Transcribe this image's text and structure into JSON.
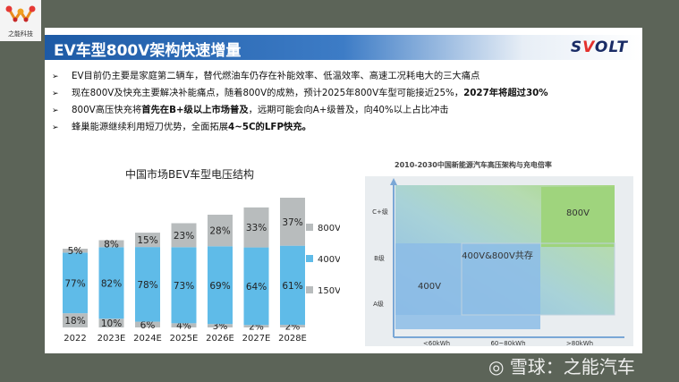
{
  "logo": {
    "text": "之能科技"
  },
  "slide": {
    "title": "EV车型800V架构快速增量",
    "brand": {
      "part1": "S",
      "dot": "V",
      "part2": "OLT"
    },
    "bullets": [
      {
        "arrow": "➢",
        "parts": [
          {
            "text": "EV目前仍主要是家庭第二辆车，替代燃油车仍存在补能效率、低温效率、高速工况耗电大的三大痛点",
            "bold": false
          }
        ]
      },
      {
        "arrow": "➢",
        "parts": [
          {
            "text": "现在800V及快充主要解决补能痛点，随着800V的成熟，预计2025年800V车型可能接近25%，",
            "bold": false
          },
          {
            "text": "2027年将超过30%",
            "bold": true
          }
        ]
      },
      {
        "arrow": "➢",
        "parts": [
          {
            "text": "800V高压快充将",
            "bold": false
          },
          {
            "text": "首先在B+级以上市场普及",
            "bold": true
          },
          {
            "text": "，远期可能会向A+级普及，向40%以上占比冲击",
            "bold": false
          }
        ]
      },
      {
        "arrow": "➢",
        "parts": [
          {
            "text": "蜂巢能源继续利用短刀优势，全面拓展",
            "bold": false
          },
          {
            "text": "4~5C的LFP快充。",
            "bold": true
          }
        ]
      }
    ]
  },
  "chart_data": [
    {
      "type": "bar",
      "title": "中国市场BEV车型电压结构",
      "categories": [
        "2022",
        "2023E",
        "2024E",
        "2025E",
        "2026E",
        "2027E",
        "2028E"
      ],
      "series": [
        {
          "name": "150V",
          "values": [
            18,
            10,
            6,
            4,
            3,
            2,
            2
          ],
          "labels": [
            "18%",
            "10%",
            "6%",
            "4%",
            "3%",
            "2%",
            "2%"
          ],
          "color": "#b8bcbd"
        },
        {
          "name": "400V",
          "values": [
            77,
            82,
            78,
            73,
            69,
            64,
            61
          ],
          "labels": [
            "77%",
            "82%",
            "78%",
            "73%",
            "69%",
            "64%",
            "61%"
          ],
          "color": "#5fbbe8"
        },
        {
          "name": "800V",
          "values": [
            5,
            8,
            15,
            23,
            28,
            33,
            37
          ],
          "labels": [
            "5%",
            "8%",
            "15%",
            "23%",
            "28%",
            "33%",
            "37%"
          ],
          "color": "#b8bcbd"
        }
      ],
      "legend": [
        "800V",
        "400V",
        "150V"
      ],
      "stacked": true
    },
    {
      "type": "area",
      "title": "2010-2030中国新能源汽车高压架构与充电倍率",
      "y_categories": [
        "A级",
        "B级",
        "C+级"
      ],
      "x_categories": [
        "<60kWh",
        "60~80kWh",
        ">80kWh"
      ],
      "regions": [
        {
          "name": "400V",
          "color": "#8cbce6"
        },
        {
          "name": "400V&800V共存",
          "color": "#b7d9c8"
        },
        {
          "name": "800V",
          "color": "#9fd47d"
        }
      ]
    }
  ],
  "watermark": {
    "symbol": "◎",
    "text": "雪球：之能汽车"
  }
}
